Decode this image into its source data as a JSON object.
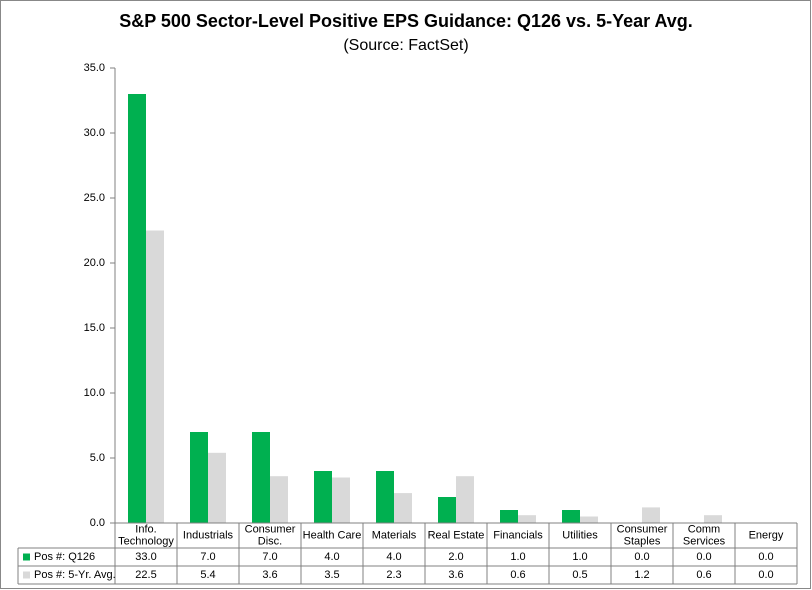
{
  "chart_data": {
    "type": "bar",
    "title": "S&P 500 Sector-Level Positive EPS Guidance: Q126 vs. 5-Year Avg.",
    "subtitle": "(Source: FactSet)",
    "categories": [
      "Info.\nTechnology",
      "Industrials",
      "Consumer\nDisc.",
      "Health Care",
      "Materials",
      "Real Estate",
      "Financials",
      "Utilities",
      "Consumer\nStaples",
      "Comm\nServices",
      "Energy"
    ],
    "series": [
      {
        "name": "Pos #: Q126",
        "color": "#00b050",
        "values": [
          33,
          7,
          7,
          4,
          4,
          2,
          1,
          1,
          0,
          0,
          0
        ],
        "value_labels": [
          "33.0",
          "7.0",
          "7.0",
          "4.0",
          "4.0",
          "2.0",
          "1.0",
          "1.0",
          "0.0",
          "0.0",
          "0.0"
        ]
      },
      {
        "name": "Pos #: 5-Yr. Avg.",
        "color": "#d9d9d9",
        "values": [
          22.5,
          5.4,
          3.6,
          3.5,
          2.3,
          3.6,
          0.6,
          0.5,
          1.2,
          0.6,
          0
        ],
        "value_labels": [
          "22.5",
          "5.4",
          "3.6",
          "3.5",
          "2.3",
          "3.6",
          "0.6",
          "0.5",
          "1.2",
          "0.6",
          "0.0"
        ]
      }
    ],
    "ylim": [
      0,
      35
    ],
    "yticks": [
      {
        "value": 0,
        "label": "0.0"
      },
      {
        "value": 5,
        "label": "5.0"
      },
      {
        "value": 10,
        "label": "10.0"
      },
      {
        "value": 15,
        "label": "15.0"
      },
      {
        "value": 20,
        "label": "20.0"
      },
      {
        "value": 25,
        "label": "25.0"
      },
      {
        "value": 30,
        "label": "30.0"
      },
      {
        "value": 35,
        "label": "35.0"
      }
    ],
    "grid": false
  }
}
